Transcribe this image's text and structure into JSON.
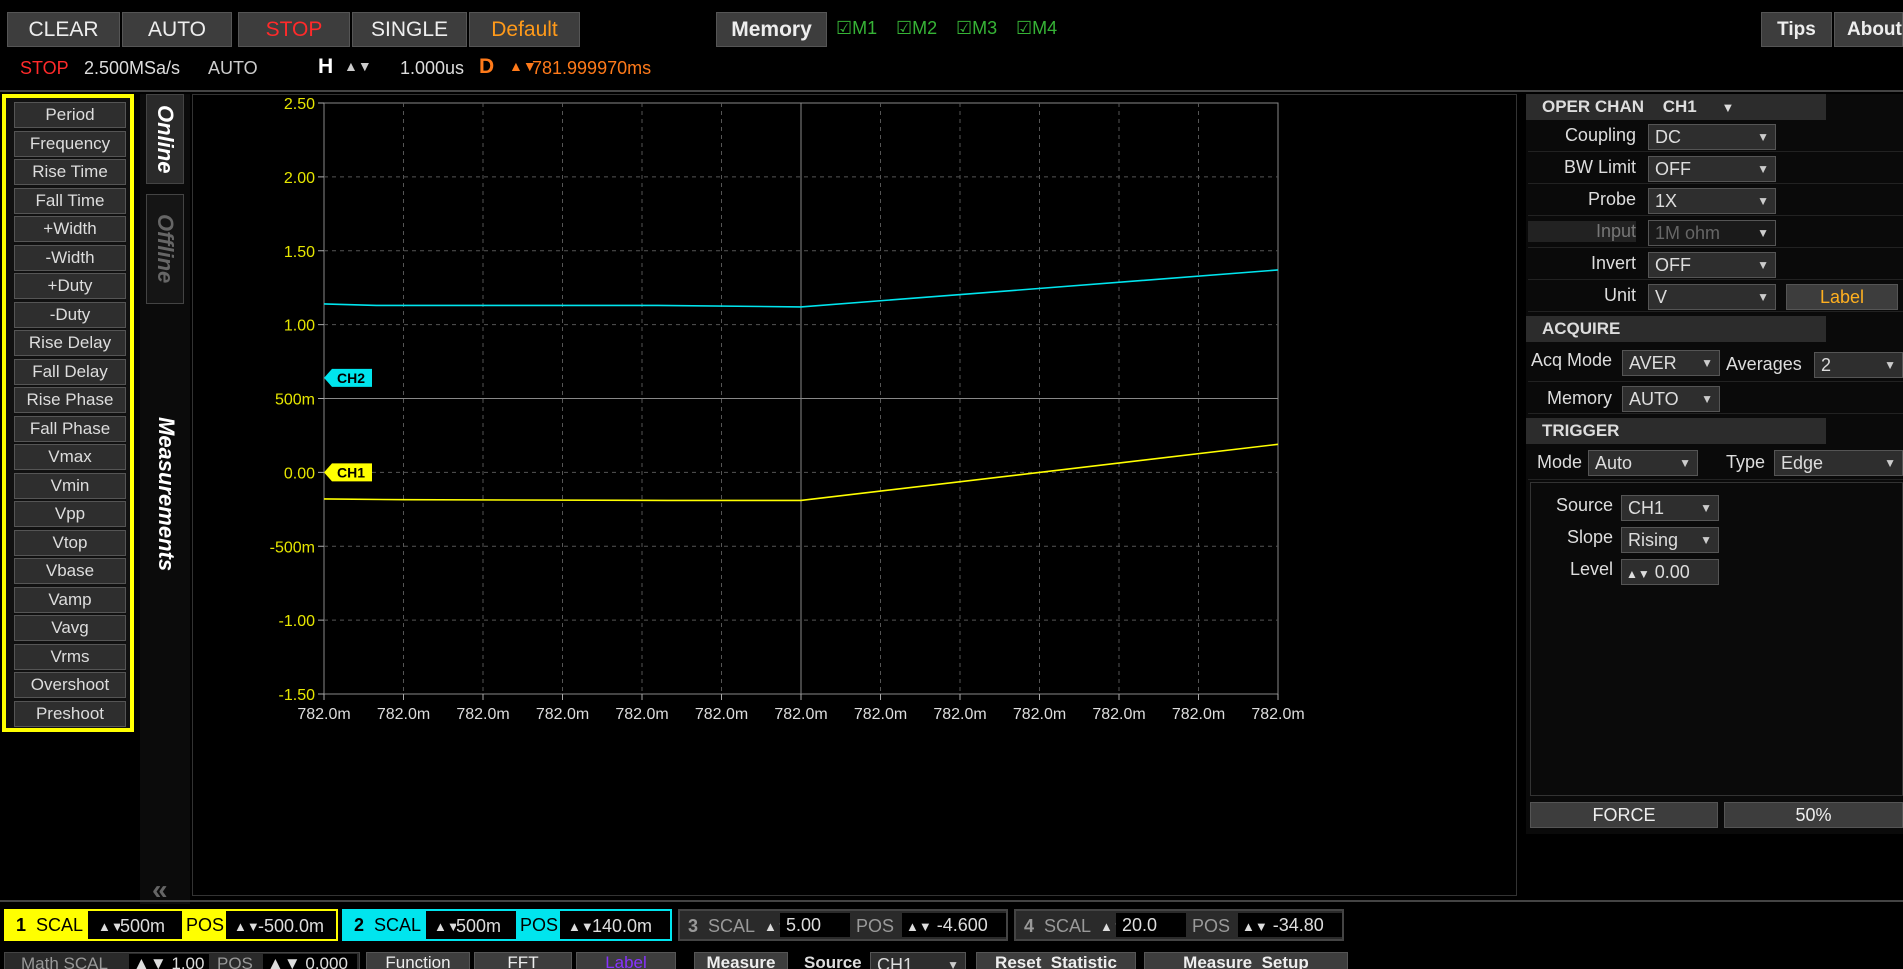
{
  "toolbar": {
    "clear": "CLEAR",
    "auto": "AUTO",
    "stop": "STOP",
    "single": "SINGLE",
    "default": "Default",
    "memory": "Memory",
    "m1": "M1",
    "m2": "M2",
    "m3": "M3",
    "m4": "M4",
    "tips": "Tips",
    "about": "About"
  },
  "status": {
    "state": "STOP",
    "sample_rate": "2.500MSa/s",
    "mode": "AUTO",
    "h_label": "H",
    "h_value": "1.000us",
    "d_label": "D",
    "d_value": "781.999970ms"
  },
  "measurements": [
    "Period",
    "Frequency",
    "Rise Time",
    "Fall Time",
    "+Width",
    "-Width",
    "+Duty",
    "-Duty",
    "Rise Delay",
    "Fall Delay",
    "Rise Phase",
    "Fall Phase",
    "Vmax",
    "Vmin",
    "Vpp",
    "Vtop",
    "Vbase",
    "Vamp",
    "Vavg",
    "Vrms",
    "Overshoot",
    "Preshoot"
  ],
  "tabs": {
    "online": "Online",
    "offline": "Offline",
    "measurements": "Measurements",
    "collapse": "«"
  },
  "plot": {
    "y_ticks": [
      "2.50",
      "2.00",
      "1.50",
      "1.00",
      "500m",
      "0.00",
      "-500m",
      "-1.00",
      "-1.50"
    ],
    "x_ticks": [
      "782.0m",
      "782.0m",
      "782.0m",
      "782.0m",
      "782.0m",
      "782.0m",
      "782.0m",
      "782.0m",
      "782.0m",
      "782.0m",
      "782.0m",
      "782.0m",
      "782.0m"
    ],
    "ch1_marker": "CH1",
    "ch2_marker": "CH2",
    "ch1_color": "#ffff00",
    "ch2_color": "#00e5ee"
  },
  "oper": {
    "header": "OPER CHAN",
    "chan": "CH1",
    "coupling_label": "Coupling",
    "coupling": "DC",
    "bw_label": "BW Limit",
    "bw": "OFF",
    "probe_label": "Probe",
    "probe": "1X",
    "input_label": "Input",
    "input": "1M ohm",
    "invert_label": "Invert",
    "invert": "OFF",
    "unit_label": "Unit",
    "unit": "V",
    "label_btn": "Label"
  },
  "acquire": {
    "header": "ACQUIRE",
    "mode_label": "Acq Mode",
    "mode": "AVER",
    "avg_label": "Averages",
    "avg": "2",
    "memory_label": "Memory",
    "memory": "AUTO"
  },
  "trigger": {
    "header": "TRIGGER",
    "mode_label": "Mode",
    "mode": "Auto",
    "type_label": "Type",
    "type": "Edge",
    "source_label": "Source",
    "source": "CH1",
    "slope_label": "Slope",
    "slope": "Rising",
    "level_label": "Level",
    "level": "0.00",
    "force": "FORCE",
    "fifty": "50%"
  },
  "channels": [
    {
      "num": "1",
      "scal_label": "SCAL",
      "scal": "500m",
      "pos_label": "POS",
      "pos": "-500.0m"
    },
    {
      "num": "2",
      "scal_label": "SCAL",
      "scal": "500m",
      "pos_label": "POS",
      "pos": "140.0m"
    },
    {
      "num": "3",
      "scal_label": "SCAL",
      "scal": "5.00",
      "pos_label": "POS",
      "pos": "-4.600"
    },
    {
      "num": "4",
      "scal_label": "SCAL",
      "scal": "20.0",
      "pos_label": "POS",
      "pos": "-34.80"
    }
  ],
  "bottom2": {
    "math_scal": "Math SCAL",
    "math_scal_val": "1.00",
    "pos_label": "POS",
    "pos_val": "0.000",
    "function": "Function",
    "fft": "FFT",
    "label": "Label",
    "measure": "Measure",
    "source_label": "Source",
    "source": "CH1",
    "reset": "Reset_Statistic",
    "setup": "Measure_Setup"
  }
}
